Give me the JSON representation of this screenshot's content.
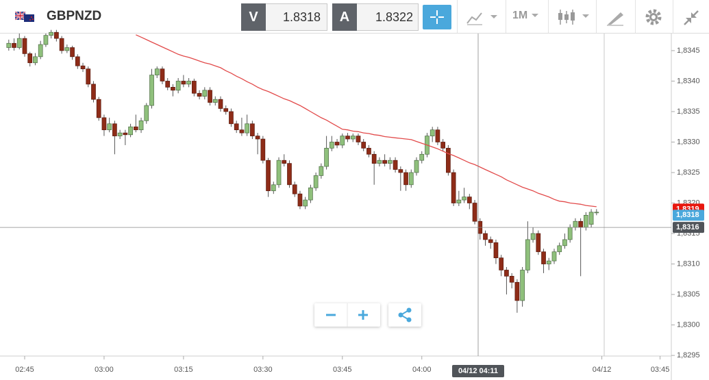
{
  "toolbar": {
    "symbol": "GBPNZD",
    "bid_label": "V",
    "bid": "1.8318",
    "ask_label": "A",
    "ask": "1.8322",
    "timeframe": "1M"
  },
  "crosshair_label": "04/12 04:11",
  "chart_data": {
    "type": "candlestick",
    "categories": [
      null,
      null,
      null,
      "02:45",
      null,
      null,
      null,
      null,
      null,
      null,
      null,
      null,
      null,
      null,
      null,
      null,
      null,
      null,
      "03:00",
      null,
      null,
      null,
      null,
      null,
      null,
      null,
      null,
      null,
      null,
      null,
      null,
      null,
      null,
      "03:15",
      null,
      null,
      null,
      null,
      null,
      null,
      null,
      null,
      null,
      null,
      null,
      null,
      null,
      null,
      "03:30",
      null,
      null,
      null,
      null,
      null,
      null,
      null,
      null,
      null,
      null,
      null,
      null,
      null,
      null,
      "03:45",
      null,
      null,
      null,
      null,
      null,
      null,
      null,
      null,
      null,
      null,
      null,
      null,
      null,
      null,
      "04:00",
      null,
      null,
      null,
      null,
      null,
      null,
      null,
      null,
      null,
      null,
      null,
      null,
      null,
      null,
      null,
      null,
      null,
      null,
      null,
      null,
      null,
      null,
      null,
      null,
      null,
      null,
      null,
      null,
      null,
      null,
      null,
      null,
      null,
      "04/12",
      null,
      null,
      null,
      null,
      null,
      null,
      null,
      null,
      null,
      null,
      "03:45",
      null
    ],
    "open": [
      1.83455,
      1.83462,
      1.83455,
      1.8347,
      1.83445,
      1.8343,
      1.8344,
      1.8346,
      1.83475,
      1.8348,
      1.8347,
      1.8345,
      1.83455,
      1.8344,
      1.83425,
      1.8342,
      1.83395,
      1.8337,
      1.8334,
      1.8332,
      1.8333,
      1.8331,
      1.83315,
      1.83312,
      1.83325,
      1.8332,
      1.83335,
      1.8336,
      1.8341,
      1.8342,
      1.834,
      1.8339,
      1.83385,
      1.834,
      1.83395,
      1.834,
      1.8338,
      1.83375,
      1.83385,
      1.83365,
      1.8337,
      1.83355,
      1.8335,
      1.8333,
      1.8332,
      1.83315,
      1.8333,
      1.8331,
      1.83305,
      1.8327,
      1.8322,
      1.8323,
      1.8327,
      1.83265,
      1.8323,
      1.83215,
      1.83195,
      1.83205,
      1.83225,
      1.83245,
      1.8326,
      1.8329,
      1.833,
      1.83295,
      1.8331,
      1.83305,
      1.8331,
      1.833,
      1.8329,
      1.8328,
      1.83265,
      1.8327,
      1.83265,
      1.8327,
      1.83255,
      1.8325,
      1.8323,
      1.8325,
      1.8327,
      1.8328,
      1.8331,
      1.8332,
      1.833,
      1.8329,
      1.8325,
      1.832,
      1.83205,
      1.8321,
      1.832,
      1.8317,
      1.8315,
      1.8314,
      1.83135,
      1.8311,
      1.8309,
      1.8308,
      1.8307,
      1.8304,
      1.8309,
      1.8314,
      1.8315,
      1.8312,
      1.831,
      1.83105,
      1.8312,
      1.8313,
      1.8314,
      1.8316,
      1.8317,
      1.8316,
      1.83165,
      1.83185,
      null,
      null,
      null,
      null,
      null,
      null,
      null,
      null,
      null,
      null,
      null,
      null,
      null
    ],
    "high": [
      1.83468,
      1.8347,
      1.83478,
      1.83474,
      1.83448,
      1.83446,
      1.83466,
      1.83478,
      1.83484,
      1.83484,
      1.83474,
      1.8346,
      1.83458,
      1.83444,
      1.8343,
      1.83424,
      1.834,
      1.83374,
      1.83345,
      1.8334,
      1.83335,
      1.8332,
      1.8332,
      1.8333,
      1.83345,
      1.8334,
      1.83364,
      1.8342,
      1.83424,
      1.83424,
      1.83405,
      1.83395,
      1.83405,
      1.8341,
      1.83405,
      1.83404,
      1.83385,
      1.8339,
      1.8339,
      1.83375,
      1.83375,
      1.8336,
      1.83355,
      1.83335,
      1.8334,
      1.83345,
      1.83335,
      1.83315,
      1.8331,
      1.83274,
      1.83235,
      1.83275,
      1.8328,
      1.8327,
      1.83235,
      1.8322,
      1.8321,
      1.8323,
      1.8325,
      1.83265,
      1.8331,
      1.8331,
      1.83305,
      1.83314,
      1.83315,
      1.83314,
      1.83314,
      1.83305,
      1.83295,
      1.83285,
      1.83275,
      1.8328,
      1.83275,
      1.83275,
      1.8326,
      1.83255,
      1.83255,
      1.83275,
      1.83285,
      1.83315,
      1.83325,
      1.83325,
      1.83305,
      1.83295,
      1.83255,
      1.8322,
      1.83225,
      1.83215,
      1.83205,
      1.83175,
      1.83155,
      1.83145,
      1.8314,
      1.83115,
      1.83095,
      1.83085,
      1.83075,
      1.83095,
      1.8317,
      1.8316,
      1.83155,
      1.83125,
      1.8311,
      1.83125,
      1.83135,
      1.8315,
      1.83165,
      1.83175,
      1.83175,
      1.83185,
      1.8319,
      1.8319,
      null,
      null,
      null,
      null,
      null,
      null,
      null,
      null,
      null,
      null,
      null,
      null,
      null
    ],
    "low": [
      1.8345,
      1.8345,
      1.83452,
      1.8344,
      1.83424,
      1.83426,
      1.83436,
      1.83456,
      1.8347,
      1.83465,
      1.83445,
      1.83446,
      1.83435,
      1.8342,
      1.83415,
      1.8339,
      1.83365,
      1.83335,
      1.8331,
      1.83316,
      1.8328,
      1.83305,
      1.83295,
      1.83308,
      1.83316,
      1.83315,
      1.8333,
      1.83355,
      1.83405,
      1.83395,
      1.83385,
      1.83375,
      1.8338,
      1.8339,
      1.8339,
      1.83375,
      1.8337,
      1.8337,
      1.8336,
      1.8336,
      1.8335,
      1.83345,
      1.83325,
      1.83315,
      1.8331,
      1.8331,
      1.83305,
      1.8328,
      1.83265,
      1.8321,
      1.83215,
      1.83225,
      1.8326,
      1.83225,
      1.8321,
      1.8319,
      1.8319,
      1.832,
      1.8322,
      1.8324,
      1.83255,
      1.83285,
      1.8329,
      1.8329,
      1.833,
      1.833,
      1.83295,
      1.83285,
      1.83275,
      1.8323,
      1.8326,
      1.8326,
      1.83255,
      1.8325,
      1.8322,
      1.8322,
      1.83225,
      1.83245,
      1.83265,
      1.83275,
      1.833,
      1.83295,
      1.83285,
      1.83245,
      1.83195,
      1.83195,
      1.832,
      1.8319,
      1.83165,
      1.8314,
      1.8313,
      1.83125,
      1.831,
      1.8308,
      1.8305,
      1.8306,
      1.8302,
      1.8303,
      1.83085,
      1.83135,
      1.83115,
      1.83085,
      1.8309,
      1.831,
      1.83115,
      1.83125,
      1.83135,
      1.83155,
      1.8308,
      1.83155,
      1.8316,
      1.8318,
      null,
      null,
      null,
      null,
      null,
      null,
      null,
      null,
      null,
      null,
      null,
      null,
      null
    ],
    "close": [
      1.83462,
      1.83455,
      1.8347,
      1.83445,
      1.8343,
      1.8344,
      1.8346,
      1.83475,
      1.8348,
      1.8347,
      1.8345,
      1.83455,
      1.8344,
      1.83425,
      1.8342,
      1.83395,
      1.8337,
      1.8334,
      1.8332,
      1.8333,
      1.8331,
      1.83315,
      1.83312,
      1.83325,
      1.8332,
      1.83335,
      1.8336,
      1.8341,
      1.8342,
      1.834,
      1.8339,
      1.83385,
      1.834,
      1.83395,
      1.834,
      1.8338,
      1.83375,
      1.83385,
      1.83365,
      1.8337,
      1.83355,
      1.8335,
      1.8333,
      1.8332,
      1.83315,
      1.8333,
      1.8331,
      1.83305,
      1.8327,
      1.8322,
      1.8323,
      1.8327,
      1.83265,
      1.8323,
      1.83215,
      1.83195,
      1.83205,
      1.83225,
      1.83245,
      1.8326,
      1.8329,
      1.833,
      1.83295,
      1.8331,
      1.83305,
      1.8331,
      1.833,
      1.8329,
      1.8328,
      1.83265,
      1.8327,
      1.83265,
      1.8327,
      1.83255,
      1.8325,
      1.8323,
      1.8325,
      1.8327,
      1.8328,
      1.8331,
      1.8332,
      1.833,
      1.8329,
      1.8325,
      1.832,
      1.83205,
      1.8321,
      1.832,
      1.8317,
      1.8315,
      1.8314,
      1.83135,
      1.8311,
      1.8309,
      1.8308,
      1.8307,
      1.8304,
      1.8309,
      1.8314,
      1.8315,
      1.8312,
      1.831,
      1.83105,
      1.8312,
      1.8313,
      1.8314,
      1.8316,
      1.8317,
      1.8316,
      1.8318,
      1.83185,
      1.83185,
      null,
      null,
      null,
      null,
      null,
      null,
      null,
      null,
      null,
      null,
      null,
      null,
      null
    ],
    "moving_average": [
      null,
      null,
      null,
      null,
      null,
      null,
      null,
      null,
      null,
      null,
      null,
      null,
      null,
      null,
      null,
      null,
      null,
      null,
      null,
      null,
      null,
      null,
      null,
      null,
      1.83476,
      1.83472,
      1.83468,
      1.83464,
      1.8346,
      1.83456,
      1.83452,
      1.83448,
      1.83444,
      1.83441,
      1.83439,
      1.83436,
      1.83433,
      1.8343,
      1.83428,
      1.83425,
      1.83422,
      1.83417,
      1.83413,
      1.83408,
      1.83404,
      1.83399,
      1.83395,
      1.8339,
      1.83386,
      1.83383,
      1.83379,
      1.83375,
      1.83371,
      1.83368,
      1.83364,
      1.8336,
      1.83355,
      1.8335,
      1.83345,
      1.8334,
      1.83336,
      1.83331,
      1.83326,
      1.83321,
      1.8332,
      1.83318,
      1.83317,
      1.83315,
      1.83314,
      1.83312,
      1.83311,
      1.83309,
      1.83308,
      1.83307,
      1.83306,
      1.83305,
      1.83304,
      1.83301,
      1.83298,
      1.83295,
      1.83292,
      1.83289,
      1.83285,
      1.83281,
      1.83278,
      1.83274,
      1.8327,
      1.83266,
      1.83263,
      1.83259,
      1.83255,
      1.83251,
      1.83247,
      1.83243,
      1.83238,
      1.83234,
      1.8323,
      1.83226,
      1.83223,
      1.8322,
      1.83216,
      1.83213,
      1.8321,
      1.83206,
      1.83203,
      1.83202,
      1.832,
      1.83199,
      1.83198,
      1.83196,
      1.83195,
      1.83194,
      null,
      null,
      null,
      null,
      null,
      null,
      null,
      null,
      null,
      null,
      null,
      null,
      null
    ],
    "up_color": "#8fc07c",
    "down_color": "#8e2c18",
    "ma_color": "#e24a4a",
    "ylim": [
      1.82949,
      1.83478
    ],
    "yticks": [
      {
        "value": 1.8295,
        "label": "1,8295"
      },
      {
        "value": 1.83,
        "label": "1,8300"
      },
      {
        "value": 1.8305,
        "label": "1,8305"
      },
      {
        "value": 1.831,
        "label": "1,8310"
      },
      {
        "value": 1.8315,
        "label": "1,8315"
      },
      {
        "value": 1.832,
        "label": "1,8320"
      },
      {
        "value": 1.8325,
        "label": "1,8325"
      },
      {
        "value": 1.833,
        "label": "1,8330"
      },
      {
        "value": 1.8335,
        "label": "1,8335"
      },
      {
        "value": 1.834,
        "label": "1,8340"
      },
      {
        "value": 1.8345,
        "label": "1,8345"
      }
    ],
    "price_tags": [
      {
        "value": 1.8319,
        "label": "1,8319",
        "color": "#e8170e"
      },
      {
        "value": 1.8318,
        "label": "1,8318",
        "color": "#4aa8dc"
      },
      {
        "value": 1.8316,
        "label": "1,8316",
        "color": "#505459"
      }
    ]
  }
}
